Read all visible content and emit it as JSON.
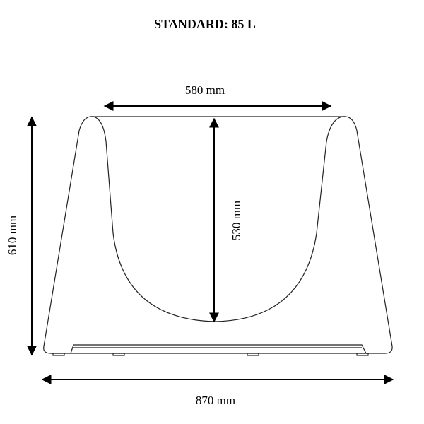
{
  "title": "STANDARD: 85 L",
  "dimensions": [
    {
      "label": "580 mm"
    },
    {
      "label": "530 mm"
    },
    {
      "label": "610 mm"
    },
    {
      "label": "870 mm"
    }
  ]
}
